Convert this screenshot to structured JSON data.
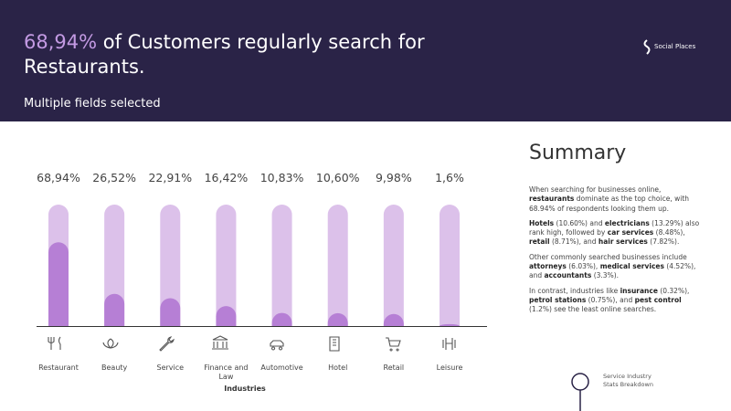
{
  "header": {
    "title_highlight": "68,94%",
    "title_rest": "of Customers regularly search for Restaurants.",
    "subtitle": "Multiple fields selected",
    "logo": "Social Places"
  },
  "chart_data": {
    "type": "bar",
    "categories": [
      "Restaurant",
      "Beauty",
      "Service",
      "Finance and Law",
      "Automotive",
      "Hotel",
      "Retail",
      "Leisure"
    ],
    "values": [
      68.94,
      26.52,
      22.91,
      16.42,
      10.83,
      10.6,
      9.98,
      1.6
    ],
    "value_labels": [
      "68,94%",
      "26,52%",
      "22,91%",
      "16,42%",
      "10,83%",
      "10,60%",
      "9,98%",
      "1,6%"
    ],
    "ylim": [
      0,
      100
    ],
    "color": "#b67fd5",
    "track_color": "#dcc1ea",
    "x_label": "Industries"
  },
  "summary": {
    "title": "Summary",
    "paragraphs": [
      [
        {
          "text": "When searching for businesses online, "
        },
        {
          "text": "restaurants",
          "bold": true
        },
        {
          "text": " dominate as the top choice, with 68.94% of respondents looking them up."
        }
      ],
      [
        {
          "text": "Hotels",
          "bold": true
        },
        {
          "text": " (10.60%) and "
        },
        {
          "text": "electricians",
          "bold": true
        },
        {
          "text": " (13.29%) also rank high, followed by "
        },
        {
          "text": "car services",
          "bold": true
        },
        {
          "text": " (8.48%), "
        },
        {
          "text": "retail",
          "bold": true
        },
        {
          "text": " (8.71%), and "
        },
        {
          "text": "hair services",
          "bold": true
        },
        {
          "text": " (7.82%)."
        }
      ],
      [
        {
          "text": "Other commonly searched businesses include "
        },
        {
          "text": "attorneys",
          "bold": true
        },
        {
          "text": " (6.03%), "
        },
        {
          "text": "medical services",
          "bold": true
        },
        {
          "text": " (4.52%), and "
        },
        {
          "text": "accountants",
          "bold": true
        },
        {
          "text": " (3.3%)."
        }
      ],
      [
        {
          "text": "In contrast, industries like "
        },
        {
          "text": "insurance",
          "bold": true
        },
        {
          "text": " (0.32%), "
        },
        {
          "text": "petrol stations",
          "bold": true
        },
        {
          "text": " (0.75%), and "
        },
        {
          "text": "pest control",
          "bold": true
        },
        {
          "text": " (1.2%) see the least online searches."
        }
      ]
    ]
  },
  "footer": {
    "caption": "Service Industry Stats Breakdown"
  }
}
